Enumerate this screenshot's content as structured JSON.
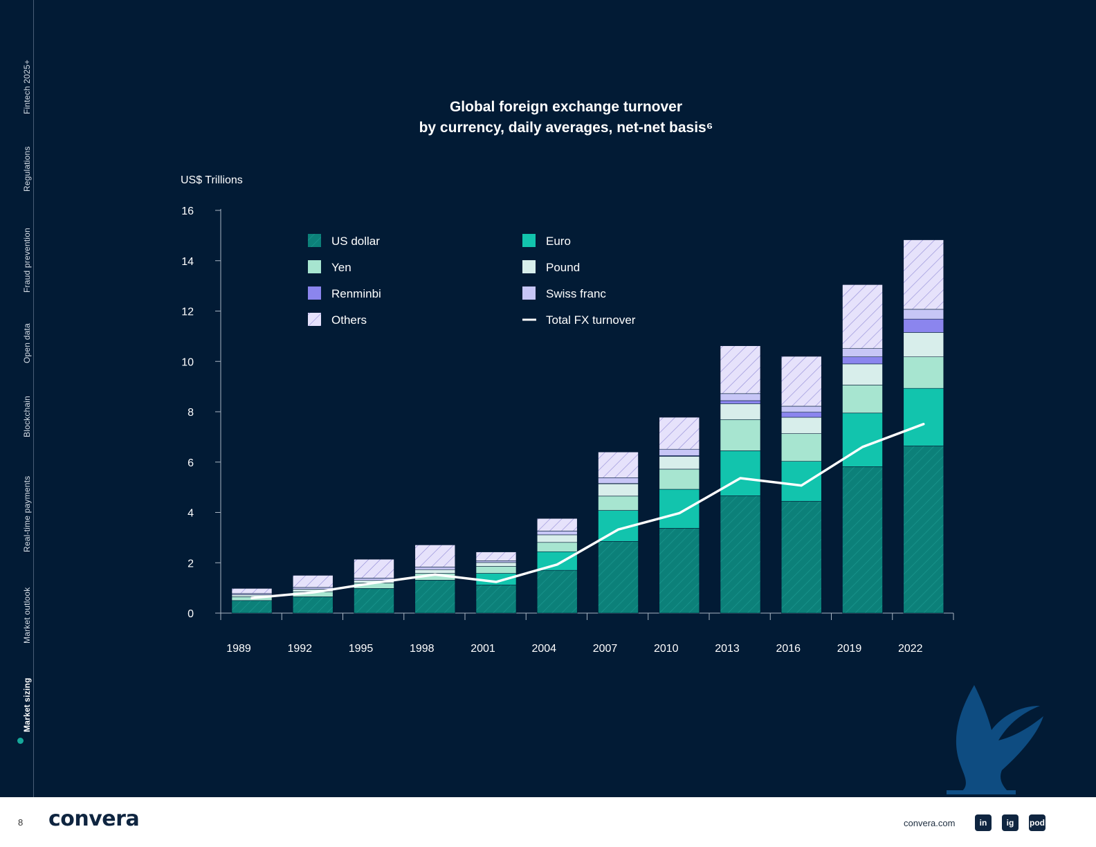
{
  "sidebar": {
    "items": [
      "Fintech 2025+",
      "Regulations",
      "Fraud prevention",
      "Open data",
      "Blockchain",
      "Real-time payments",
      "Market outlook",
      "Market sizing"
    ],
    "active": "Market sizing"
  },
  "colors": {
    "background": "#021b35",
    "us_dollar": "#0c8079",
    "euro": "#12c4ad",
    "yen": "#a7e5d0",
    "pound": "#d8eeeb",
    "renminbi": "#8b85ee",
    "swiss_franc": "#c7c6f6",
    "others": "#e6e2fb",
    "line": "#ffffff"
  },
  "chart_data": {
    "type": "bar",
    "stacked": true,
    "title_line1": "Global foreign exchange turnover",
    "title_line2": "by currency, daily averages, net-net basis⁶",
    "ylabel": "US$ Trillions",
    "ylim": [
      0,
      16
    ],
    "yticks": [
      0,
      2,
      4,
      6,
      8,
      10,
      12,
      14,
      16
    ],
    "categories": [
      "1989",
      "1992",
      "1995",
      "1998",
      "2001",
      "2004",
      "2007",
      "2010",
      "2013",
      "2016",
      "2019",
      "2022"
    ],
    "series": [
      {
        "name": "US dollar",
        "key": "us_dollar",
        "pattern": "hatch",
        "values": [
          0.5,
          0.65,
          0.98,
          1.31,
          1.12,
          1.7,
          2.85,
          3.37,
          4.66,
          4.44,
          5.82,
          6.64
        ]
      },
      {
        "name": "Euro",
        "key": "euro",
        "pattern": "solid",
        "values": [
          0.0,
          0.0,
          0.0,
          0.0,
          0.46,
          0.74,
          1.23,
          1.55,
          1.79,
          1.59,
          2.13,
          2.29
        ]
      },
      {
        "name": "Yen",
        "key": "yen",
        "pattern": "solid",
        "values": [
          0.15,
          0.2,
          0.22,
          0.27,
          0.28,
          0.37,
          0.57,
          0.8,
          1.24,
          1.1,
          1.11,
          1.25
        ]
      },
      {
        "name": "Pound",
        "key": "pound",
        "pattern": "solid",
        "values": [
          0.08,
          0.1,
          0.1,
          0.15,
          0.15,
          0.3,
          0.49,
          0.51,
          0.63,
          0.65,
          0.84,
          0.97
        ]
      },
      {
        "name": "Renminbi",
        "key": "renminbi",
        "pattern": "solid",
        "values": [
          0.0,
          0.0,
          0.0,
          0.0,
          0.0,
          0.0,
          0.01,
          0.03,
          0.12,
          0.2,
          0.28,
          0.53
        ]
      },
      {
        "name": "Swiss franc",
        "key": "swiss_franc",
        "pattern": "solid",
        "values": [
          0.05,
          0.07,
          0.09,
          0.1,
          0.07,
          0.15,
          0.23,
          0.25,
          0.28,
          0.24,
          0.33,
          0.39
        ]
      },
      {
        "name": "Others",
        "key": "others",
        "pattern": "hatch",
        "values": [
          0.2,
          0.48,
          0.75,
          0.88,
          0.35,
          0.5,
          1.02,
          1.27,
          1.9,
          1.98,
          2.54,
          2.76
        ]
      }
    ],
    "line": {
      "name": "Total FX turnover",
      "values": [
        0.6,
        0.82,
        1.2,
        1.53,
        1.24,
        1.93,
        3.32,
        3.97,
        5.36,
        5.07,
        6.6,
        7.51
      ]
    },
    "legend": [
      "US dollar",
      "Euro",
      "Yen",
      "Pound",
      "Renminbi",
      "Swiss franc",
      "Others",
      "Total FX turnover"
    ],
    "legend_position": "top-left"
  },
  "footer": {
    "page_number": "8",
    "logo_text": "convera",
    "website": "convera.com",
    "social": [
      "in",
      "ig",
      "pod"
    ]
  }
}
